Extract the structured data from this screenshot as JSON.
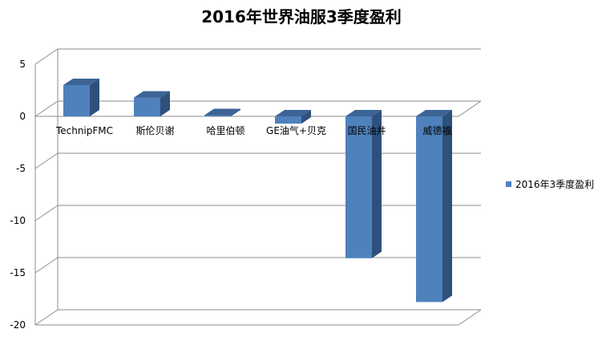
{
  "chart_data": {
    "type": "bar",
    "title": "2016年世界油服3季度盈利",
    "xlabel": "",
    "ylabel": "",
    "categories": [
      "TechnipFMC",
      "斯伦贝谢",
      "哈里伯顿",
      "GE油气+贝克",
      "国民油井",
      "威德福"
    ],
    "series": [
      {
        "name": "2016年3季度盈利",
        "values": [
          3.0,
          1.8,
          0.0,
          -0.7,
          -13.6,
          -17.8
        ]
      }
    ],
    "ylim": [
      -20,
      5
    ],
    "yticks": [
      5,
      0,
      -5,
      -10,
      -15,
      -20
    ],
    "grid": true,
    "legend": "right",
    "style": "3d-column",
    "colors": {
      "bar_front": "#4F81BD",
      "bar_side": "#2E507C",
      "bar_top": "#3C6496",
      "grid": "#8C8C8C"
    }
  }
}
